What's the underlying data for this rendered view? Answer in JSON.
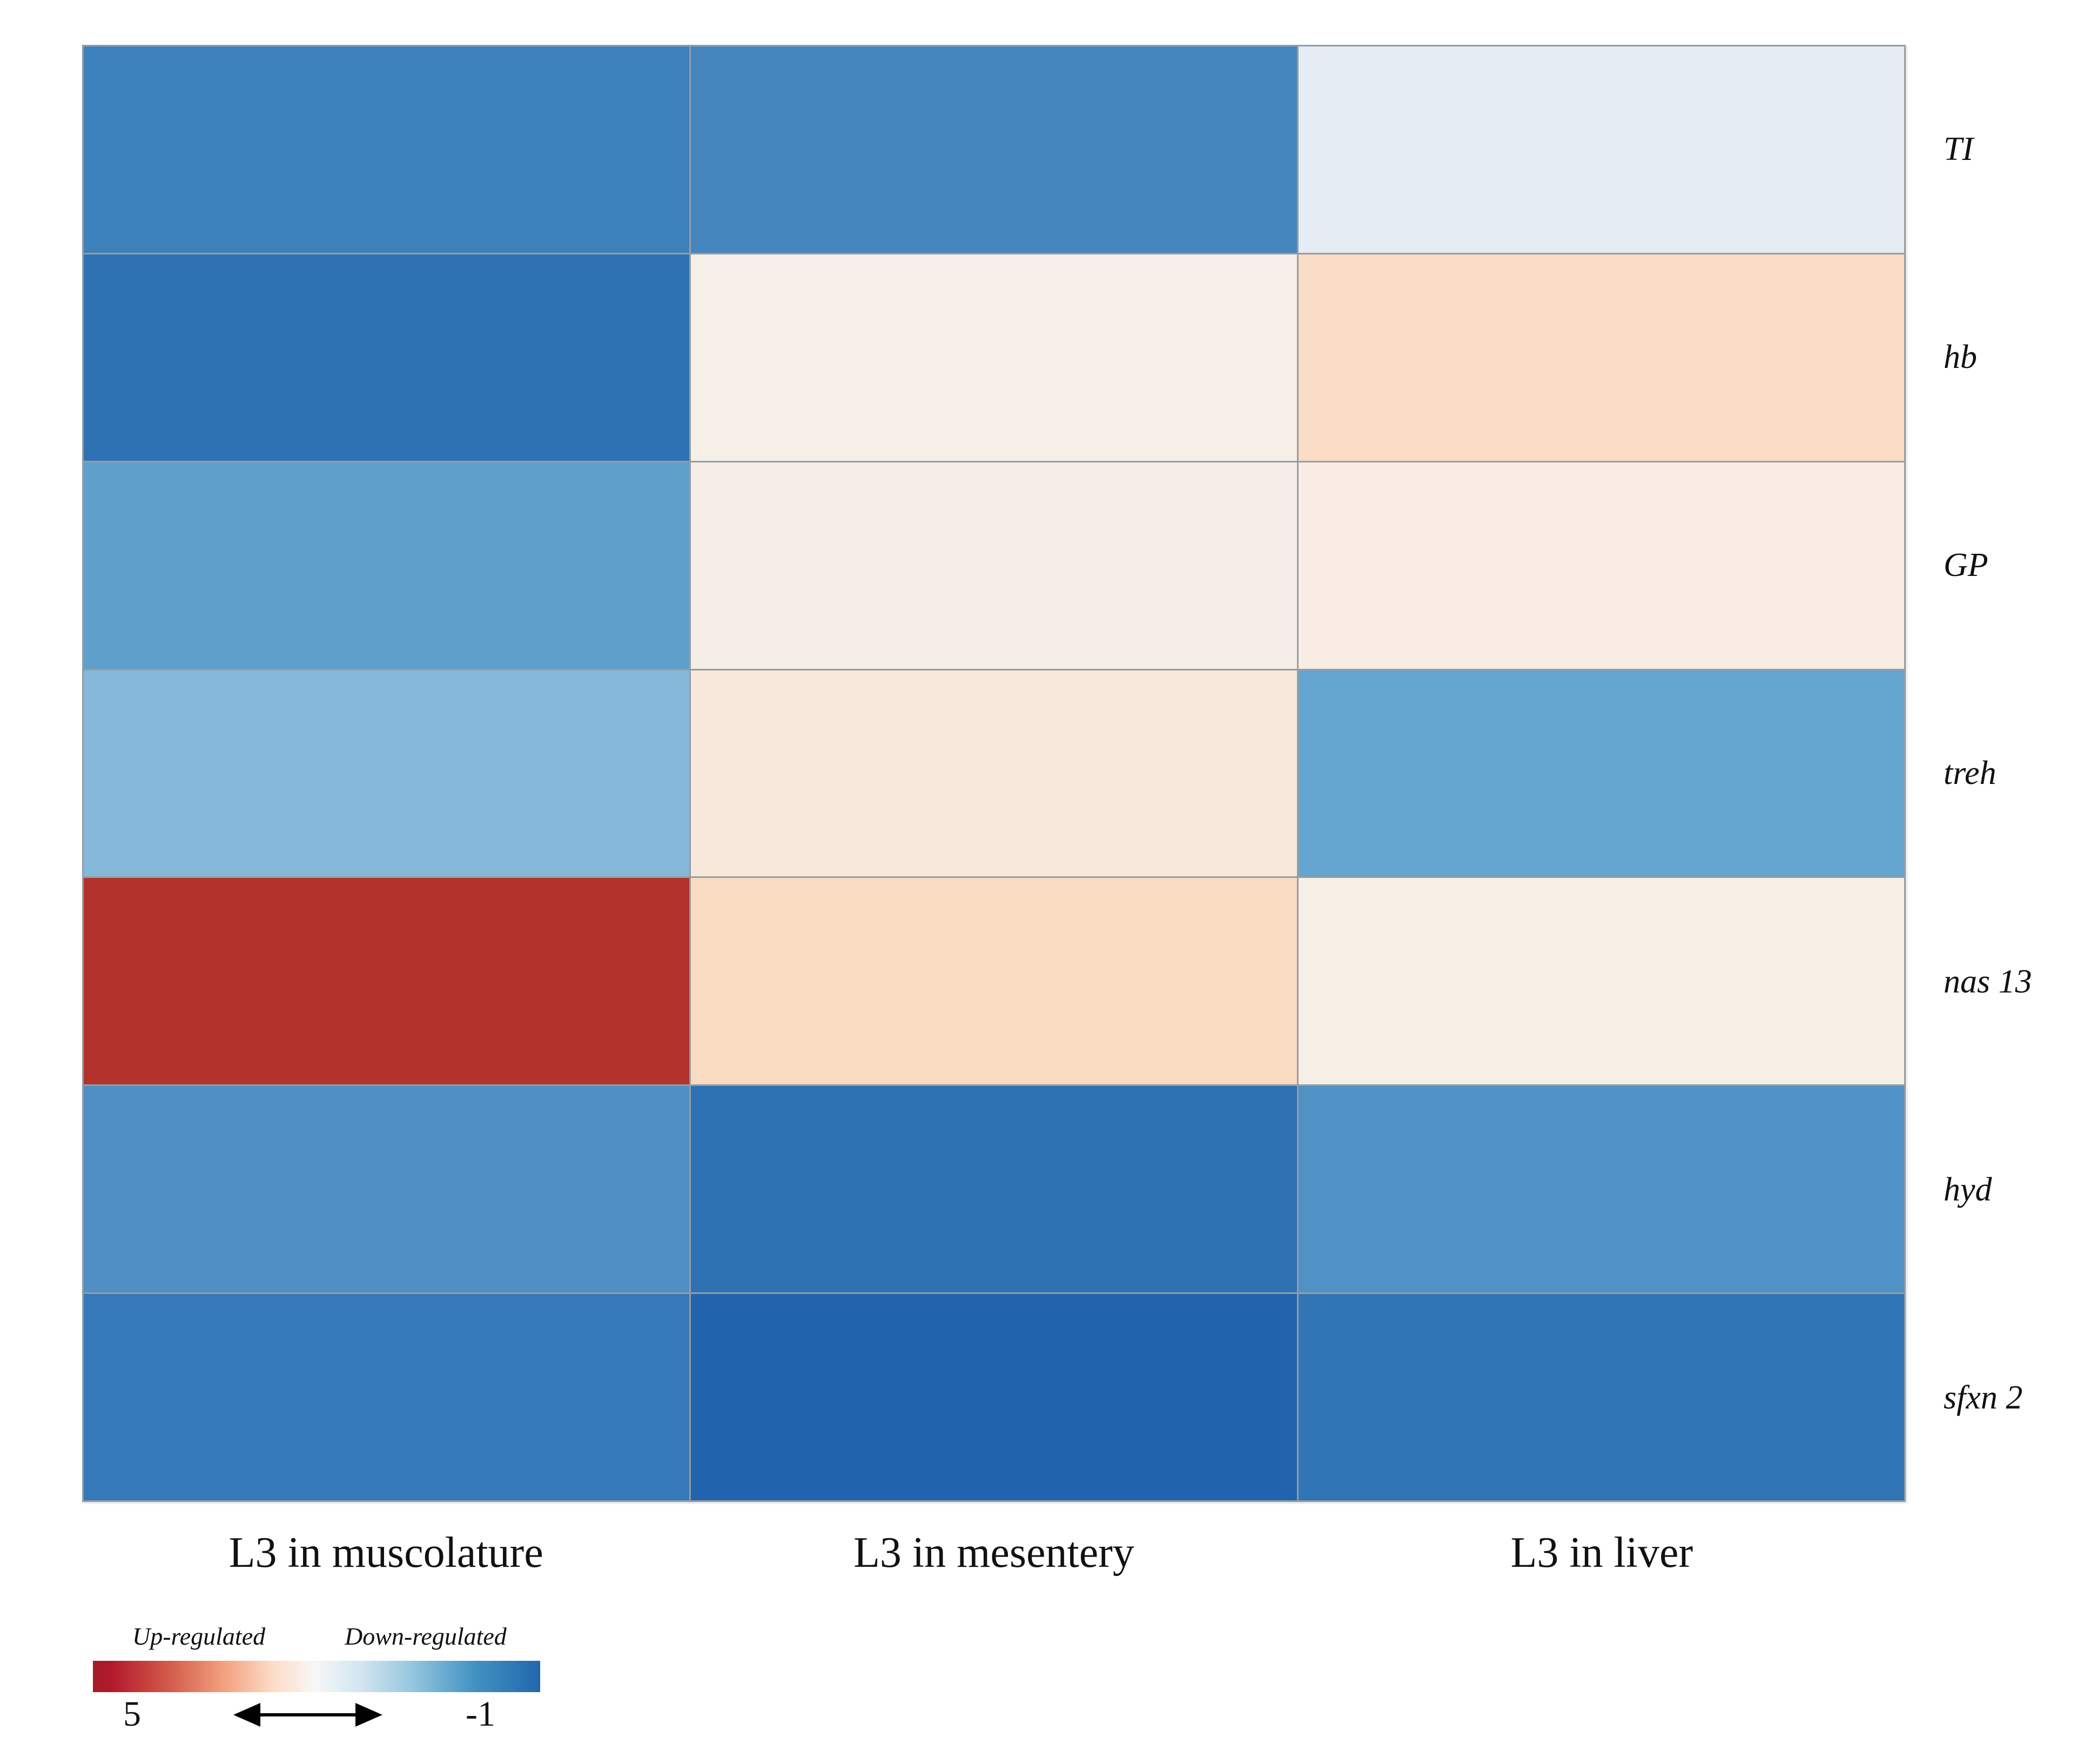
{
  "figure": {
    "description": "Gene expression heatmap of L3 larvae in three tissues",
    "background_color": "#ffffff",
    "grid_line_color": "#979ca2",
    "text_color": "#111111"
  },
  "chart_data": {
    "type": "heatmap",
    "rows": [
      "TI",
      "hb",
      "GP",
      "treh",
      "nas 13",
      "hyd",
      "sfxn 2"
    ],
    "columns": [
      "L3 in muscolature",
      "L3 in mesentery",
      "L3 in liver"
    ],
    "cell_colors": [
      [
        "#3e82bd",
        "#4586bf",
        "#e6ecf4"
      ],
      [
        "#2e72b3",
        "#f5efe7",
        "#fbdcc4"
      ],
      [
        "#5f9fcc",
        "#f4eee6",
        "#f8ece5"
      ],
      [
        "#85b8d9",
        "#f8e8db",
        "#64a6cf"
      ],
      [
        "#b2332b",
        "#fadcc3",
        "#f6efe6"
      ],
      [
        "#4f8fc4",
        "#2e72b4",
        "#5092c5"
      ],
      [
        "#3579b8",
        "#2164ad",
        "#3076b6"
      ]
    ],
    "values_estimated_from_colors": [
      [
        0.1,
        0.1,
        1.6
      ],
      [
        -0.2,
        2.1,
        2.6
      ],
      [
        0.4,
        2.1,
        2.2
      ],
      [
        0.7,
        2.4,
        0.5
      ],
      [
        4.4,
        2.6,
        2.1
      ],
      [
        0.3,
        -0.2,
        0.3
      ],
      [
        0.0,
        -0.4,
        -0.1
      ]
    ],
    "value_scale": {
      "max": 5,
      "min": -1,
      "max_side": "left-red",
      "min_side": "right-blue"
    },
    "colorbar": {
      "up_label": "Up-regulated",
      "down_label": "Down-regulated",
      "max_label": "5",
      "min_label": "-1",
      "gradient_stops": [
        "#a31c25 0%",
        "#b2182b 4%",
        "#d6604d 18%",
        "#f4a582 30%",
        "#fddbc7 40%",
        "#f9f2ee 48%",
        "#f7f7f7 50%",
        "#eef3f7 52%",
        "#d1e5f0 60%",
        "#92c5de 72%",
        "#4393c3 85%",
        "#2267ad 100%"
      ],
      "position": "bottom-left"
    },
    "legend_position": "bottom-left",
    "grid_on": true,
    "title": "",
    "xlabel": "",
    "ylabel": ""
  }
}
